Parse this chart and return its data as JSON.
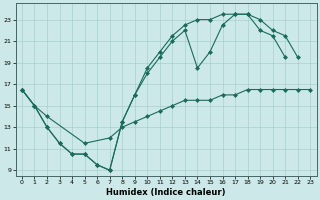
{
  "xlabel": "Humidex (Indice chaleur)",
  "xlim": [
    -0.5,
    23.5
  ],
  "ylim": [
    8.5,
    24.5
  ],
  "xticks": [
    0,
    1,
    2,
    3,
    4,
    5,
    6,
    7,
    8,
    9,
    10,
    11,
    12,
    13,
    14,
    15,
    16,
    17,
    18,
    19,
    20,
    21,
    22,
    23
  ],
  "yticks": [
    9,
    11,
    13,
    15,
    17,
    19,
    21,
    23
  ],
  "bg_color": "#cce8e8",
  "line_color": "#1a6b5a",
  "curve1_x": [
    0,
    1,
    2,
    3,
    4,
    5,
    6,
    7,
    8,
    9,
    10,
    11,
    12,
    13,
    14,
    15,
    16,
    17,
    18,
    19,
    20,
    21
  ],
  "curve1_y": [
    16.5,
    15.0,
    13.0,
    11.5,
    10.5,
    10.5,
    9.5,
    9.0,
    13.5,
    16.0,
    18.0,
    19.5,
    21.0,
    22.0,
    18.5,
    20.0,
    22.5,
    23.5,
    23.5,
    22.0,
    21.5,
    19.5
  ],
  "curve2_x": [
    0,
    1,
    2,
    3,
    4,
    5,
    6,
    7,
    8,
    9,
    10,
    11,
    12,
    13,
    14,
    15,
    16,
    17,
    18,
    19,
    20,
    21,
    22
  ],
  "curve2_y": [
    16.5,
    15.0,
    13.0,
    11.5,
    10.5,
    10.5,
    9.5,
    9.0,
    13.5,
    16.0,
    18.5,
    20.0,
    21.5,
    22.5,
    23.0,
    23.0,
    23.5,
    23.5,
    23.5,
    23.0,
    22.0,
    21.5,
    19.5
  ],
  "curve3_x": [
    0,
    1,
    2,
    5,
    7,
    8,
    9,
    10,
    11,
    12,
    13,
    14,
    15,
    16,
    17,
    18,
    19,
    20,
    21,
    22,
    23
  ],
  "curve3_y": [
    16.5,
    15.0,
    14.0,
    11.5,
    12.0,
    13.0,
    13.5,
    14.0,
    14.5,
    15.0,
    15.5,
    15.5,
    15.5,
    16.0,
    16.0,
    16.5,
    16.5,
    16.5,
    16.5,
    16.5,
    16.5
  ]
}
